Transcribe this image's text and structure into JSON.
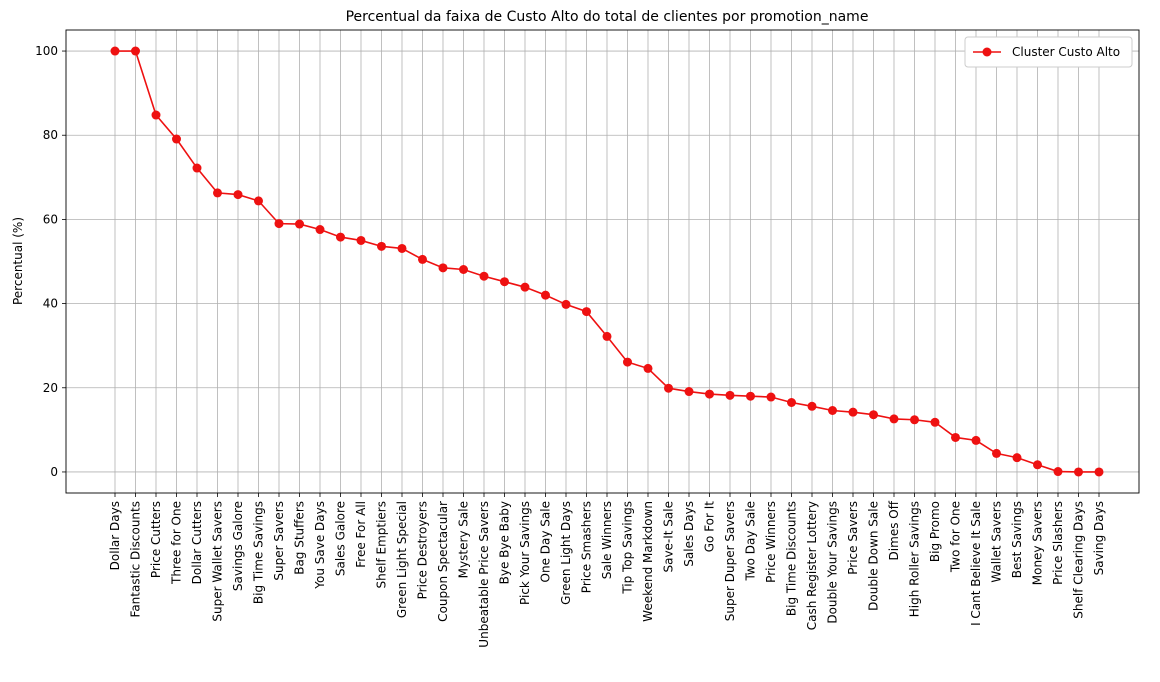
{
  "chart_data": {
    "type": "line",
    "title": "Percentual da faixa de Custo Alto do total de clientes por promotion_name",
    "xlabel": "",
    "ylabel": "Percentual (%)",
    "ylim": [
      -5,
      105
    ],
    "yticks": [
      0,
      20,
      40,
      60,
      80,
      100
    ],
    "grid": true,
    "legend_position": "top-right",
    "line_color": "#ee1111",
    "categories": [
      "Dollar Days",
      "Fantastic Discounts",
      "Price Cutters",
      "Three for One",
      "Dollar Cutters",
      "Super Wallet Savers",
      "Savings Galore",
      "Big Time Savings",
      "Super Savers",
      "Bag Stuffers",
      "You Save Days",
      "Sales Galore",
      "Free For All",
      "Shelf Emptiers",
      "Green Light Special",
      "Price Destroyers",
      "Coupon Spectacular",
      "Mystery Sale",
      "Unbeatable Price Savers",
      "Bye Bye Baby",
      "Pick Your Savings",
      "One Day Sale",
      "Green Light Days",
      "Price Smashers",
      "Sale Winners",
      "Tip Top Savings",
      "Weekend Markdown",
      "Save-It Sale",
      "Sales Days",
      "Go For It",
      "Super Duper Savers",
      "Two Day Sale",
      "Price Winners",
      "Big Time Discounts",
      "Cash Register Lottery",
      "Double Your Savings",
      "Price Savers",
      "Double Down Sale",
      "Dimes Off",
      "High Roller Savings",
      "Big Promo",
      "Two for One",
      "I Cant Believe It Sale",
      "Wallet Savers",
      "Best Savings",
      "Money Savers",
      "Price Slashers",
      "Shelf Clearing Days",
      "Saving Days"
    ],
    "series": [
      {
        "name": "Cluster Custo Alto",
        "values": [
          100,
          100,
          84.8,
          79.1,
          72.2,
          66.3,
          65.9,
          64.4,
          59.0,
          58.9,
          57.6,
          55.8,
          55.0,
          53.6,
          53.1,
          50.5,
          48.5,
          48.1,
          46.5,
          45.2,
          43.9,
          42.0,
          39.8,
          38.1,
          32.2,
          26.1,
          24.6,
          19.9,
          19.1,
          18.5,
          18.2,
          18.0,
          17.8,
          16.5,
          15.6,
          14.6,
          14.2,
          13.6,
          12.6,
          12.4,
          11.8,
          8.2,
          7.5,
          4.4,
          3.4,
          1.7,
          0.1,
          0.0,
          0.0
        ]
      }
    ]
  }
}
